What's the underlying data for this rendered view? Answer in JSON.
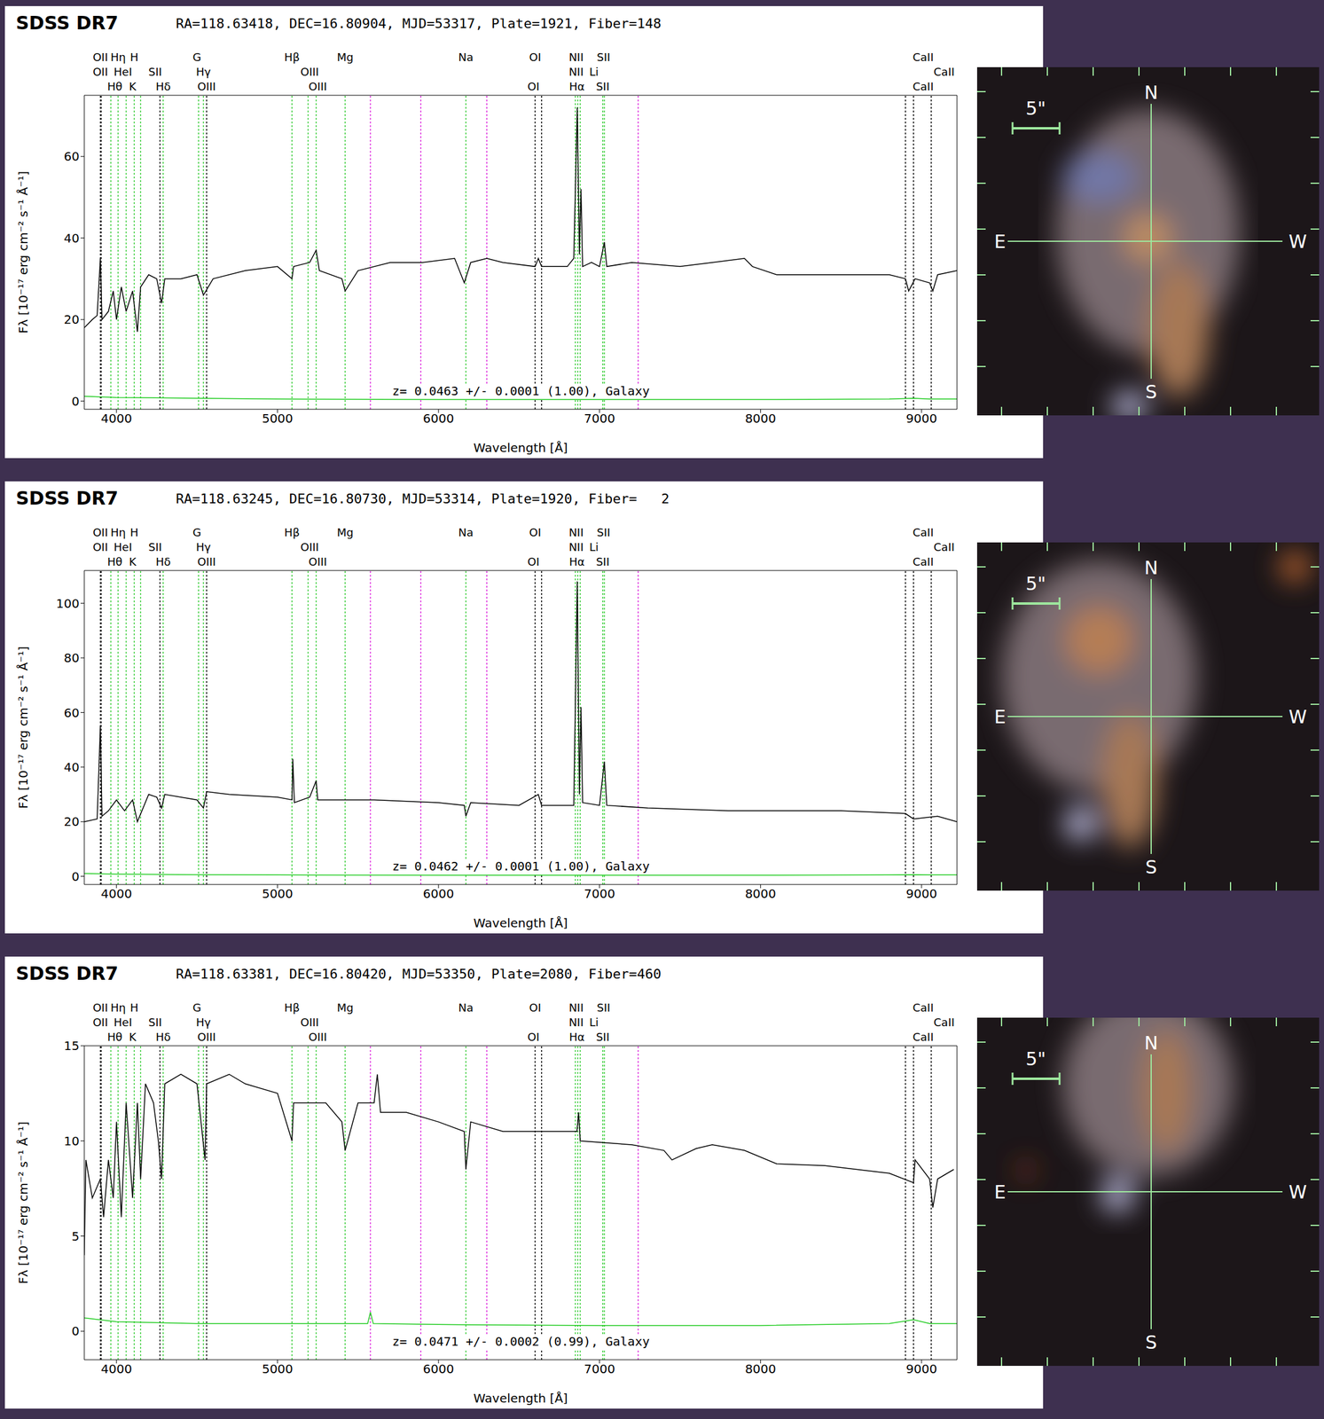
{
  "chart_data": [
    {
      "type": "line",
      "title": "SDSS DR7",
      "subtitle": "RA=118.63418, DEC=16.80904, MJD=53317, Plate=1921, Fiber=148",
      "x_label": "Wavelength [Å]",
      "y_label": "Fλ [10⁻¹⁷ erg cm⁻² s⁻¹ Å⁻¹]",
      "annotation": "z= 0.0463 +/- 0.0001 (1.00), Galaxy",
      "color": "#000000",
      "xlim": [
        3800,
        9220
      ],
      "xticks": [
        4000,
        5000,
        6000,
        7000,
        8000,
        9000
      ],
      "ylim": [
        -2,
        75
      ],
      "yticks": [
        0,
        20,
        40,
        60
      ],
      "x": [
        3800,
        3850,
        3880,
        3900,
        3910,
        3950,
        3980,
        4000,
        4030,
        4060,
        4100,
        4130,
        4150,
        4200,
        4250,
        4280,
        4300,
        4400,
        4500,
        4540,
        4600,
        4800,
        5000,
        5090,
        5100,
        5200,
        5240,
        5260,
        5400,
        5420,
        5500,
        5700,
        5900,
        6100,
        6160,
        6200,
        6300,
        6400,
        6600,
        6620,
        6640,
        6800,
        6840,
        6862,
        6875,
        6885,
        6895,
        6950,
        7000,
        7030,
        7045,
        7200,
        7500,
        7700,
        7900,
        7950,
        8100,
        8500,
        8800,
        8900,
        8920,
        8960,
        9050,
        9070,
        9100,
        9220
      ],
      "values": [
        18,
        20,
        21,
        35,
        20,
        22,
        27,
        20,
        28,
        22,
        27,
        17,
        28,
        31,
        30,
        24,
        30,
        30,
        31,
        26,
        30,
        32,
        33,
        30,
        33,
        34,
        37,
        32,
        30,
        27,
        32,
        34,
        34,
        35,
        29,
        34,
        35,
        34,
        33,
        35,
        33,
        33,
        35,
        72,
        36,
        52,
        33,
        34,
        33,
        39,
        33,
        34,
        33,
        34,
        35,
        33,
        31,
        31,
        31,
        30,
        27,
        30,
        29,
        27,
        31,
        32
      ],
      "error": {
        "x": [
          3800,
          4000,
          4500,
          5000,
          6000,
          7000,
          8000,
          8800,
          8950,
          9050,
          9220
        ],
        "values": [
          1.2,
          0.9,
          0.7,
          0.5,
          0.4,
          0.4,
          0.4,
          0.5,
          0.7,
          0.5,
          0.5
        ]
      }
    },
    {
      "type": "line",
      "title": "SDSS DR7",
      "subtitle": "RA=118.63245, DEC=16.80730, MJD=53314, Plate=1920, Fiber=   2",
      "x_label": "Wavelength [Å]",
      "y_label": "Fλ [10⁻¹⁷ erg cm⁻² s⁻¹ Å⁻¹]",
      "annotation": "z= 0.0462 +/- 0.0001 (1.00), Galaxy",
      "color": "#000000",
      "xlim": [
        3800,
        9220
      ],
      "xticks": [
        4000,
        5000,
        6000,
        7000,
        8000,
        9000
      ],
      "ylim": [
        -3,
        112
      ],
      "yticks": [
        0,
        20,
        40,
        60,
        80,
        100
      ],
      "x": [
        3800,
        3880,
        3900,
        3910,
        3950,
        4000,
        4050,
        4100,
        4130,
        4200,
        4250,
        4280,
        4300,
        4500,
        4540,
        4560,
        4700,
        5000,
        5090,
        5095,
        5105,
        5200,
        5240,
        5250,
        5400,
        5600,
        6000,
        6160,
        6170,
        6200,
        6500,
        6620,
        6640,
        6840,
        6862,
        6875,
        6885,
        6895,
        7000,
        7030,
        7045,
        7300,
        7800,
        8500,
        8900,
        8950,
        9100,
        9220
      ],
      "values": [
        20,
        21,
        55,
        22,
        24,
        28,
        24,
        28,
        20,
        30,
        29,
        25,
        30,
        28,
        25,
        31,
        30,
        29,
        28,
        43,
        27,
        29,
        35,
        28,
        28,
        28,
        27,
        26,
        22,
        27,
        26,
        30,
        26,
        26,
        108,
        30,
        62,
        27,
        26,
        42,
        26,
        25,
        24,
        24,
        23,
        21,
        22,
        20
      ],
      "error": {
        "x": [
          3800,
          4000,
          4500,
          5000,
          6000,
          7000,
          8000,
          8800,
          8950,
          9050,
          9220
        ],
        "values": [
          1.0,
          0.8,
          0.6,
          0.5,
          0.4,
          0.4,
          0.4,
          0.5,
          0.6,
          0.5,
          0.5
        ]
      }
    },
    {
      "type": "line",
      "title": "SDSS DR7",
      "subtitle": "RA=118.63381, DEC=16.80420, MJD=53350, Plate=2080, Fiber=460",
      "x_label": "Wavelength [Å]",
      "y_label": "Fλ [10⁻¹⁷ erg cm⁻² s⁻¹ Å⁻¹]",
      "annotation": "z= 0.0471 +/- 0.0002 (0.99), Galaxy",
      "color": "#000000",
      "xlim": [
        3800,
        9220
      ],
      "xticks": [
        4000,
        5000,
        6000,
        7000,
        8000,
        9000
      ],
      "ylim": [
        -1.5,
        15
      ],
      "yticks": [
        0,
        5,
        10,
        15
      ],
      "x": [
        3800,
        3810,
        3850,
        3900,
        3920,
        3950,
        3980,
        4000,
        4030,
        4060,
        4100,
        4130,
        4150,
        4180,
        4230,
        4260,
        4280,
        4300,
        4400,
        4500,
        4550,
        4560,
        4700,
        4800,
        5000,
        5090,
        5100,
        5300,
        5400,
        5420,
        5500,
        5600,
        5620,
        5640,
        5800,
        6000,
        6160,
        6170,
        6200,
        6400,
        6600,
        6700,
        6860,
        6870,
        6880,
        7200,
        7400,
        7450,
        7600,
        7700,
        7900,
        8100,
        8400,
        8800,
        8950,
        8960,
        9050,
        9070,
        9100,
        9200
      ],
      "values": [
        4,
        9,
        7,
        8,
        6,
        9,
        7,
        11,
        6,
        12,
        7,
        12,
        8,
        13,
        12,
        10,
        8,
        13,
        13.5,
        13,
        9,
        13,
        13.5,
        13,
        12.5,
        10,
        12,
        12,
        11,
        9.5,
        12,
        12,
        13.5,
        11.5,
        11.5,
        11,
        10.5,
        8.5,
        11,
        10.5,
        10.5,
        10.5,
        10.5,
        11.5,
        10,
        9.8,
        9.5,
        9,
        9.6,
        9.8,
        9.5,
        8.8,
        8.7,
        8.3,
        7.8,
        9,
        8,
        6.5,
        8,
        8.5
      ],
      "error": {
        "x": [
          3800,
          4000,
          4500,
          5000,
          5560,
          5577,
          5595,
          6000,
          7000,
          8000,
          8800,
          8950,
          9050,
          9220
        ],
        "values": [
          0.7,
          0.5,
          0.4,
          0.4,
          0.4,
          1.0,
          0.4,
          0.35,
          0.3,
          0.3,
          0.4,
          0.6,
          0.4,
          0.4
        ]
      }
    }
  ],
  "spectral_lines": {
    "markers": [
      {
        "x": 3900,
        "color": "#000000"
      },
      {
        "x": 3905,
        "color": "#000000"
      },
      {
        "x": 3965,
        "color": "#33cc33"
      },
      {
        "x": 4010,
        "color": "#33cc33"
      },
      {
        "x": 4060,
        "color": "#33cc33"
      },
      {
        "x": 4110,
        "color": "#33cc33"
      },
      {
        "x": 4150,
        "color": "#33cc33"
      },
      {
        "x": 4270,
        "color": "#000000"
      },
      {
        "x": 4290,
        "color": "#33cc33"
      },
      {
        "x": 4510,
        "color": "#33cc33"
      },
      {
        "x": 4540,
        "color": "#33cc33"
      },
      {
        "x": 4560,
        "color": "#000000"
      },
      {
        "x": 5090,
        "color": "#33cc33"
      },
      {
        "x": 5190,
        "color": "#33cc33"
      },
      {
        "x": 5240,
        "color": "#33cc33"
      },
      {
        "x": 5420,
        "color": "#33cc33"
      },
      {
        "x": 5577,
        "color": "#dd22dd"
      },
      {
        "x": 5890,
        "color": "#dd22dd"
      },
      {
        "x": 6170,
        "color": "#33cc33"
      },
      {
        "x": 6300,
        "color": "#dd22dd"
      },
      {
        "x": 6600,
        "color": "#000000"
      },
      {
        "x": 6640,
        "color": "#000000"
      },
      {
        "x": 6850,
        "color": "#33cc33"
      },
      {
        "x": 6865,
        "color": "#33cc33"
      },
      {
        "x": 6880,
        "color": "#33cc33"
      },
      {
        "x": 7020,
        "color": "#33cc33"
      },
      {
        "x": 7030,
        "color": "#33cc33"
      },
      {
        "x": 7240,
        "color": "#dd22dd"
      },
      {
        "x": 8900,
        "color": "#000000"
      },
      {
        "x": 8950,
        "color": "#000000"
      },
      {
        "x": 9060,
        "color": "#000000"
      }
    ],
    "labels": [
      [
        {
          "x": 3900,
          "label": "OII"
        },
        {
          "x": 4010,
          "label": "Hη"
        },
        {
          "x": 4110,
          "label": "H"
        },
        {
          "x": 4500,
          "label": "G"
        },
        {
          "x": 5090,
          "label": "Hβ"
        },
        {
          "x": 5420,
          "label": "Mg"
        },
        {
          "x": 6170,
          "label": "Na"
        },
        {
          "x": 6600,
          "label": "OI"
        },
        {
          "x": 6855,
          "label": "NII"
        },
        {
          "x": 7025,
          "label": "SII"
        },
        {
          "x": 9010,
          "label": "CaII"
        }
      ],
      [
        {
          "x": 3900,
          "label": "OII"
        },
        {
          "x": 4040,
          "label": "HeI"
        },
        {
          "x": 4240,
          "label": "SII"
        },
        {
          "x": 4540,
          "label": "Hγ"
        },
        {
          "x": 5200,
          "label": "OIII"
        },
        {
          "x": 6855,
          "label": "NII"
        },
        {
          "x": 6965,
          "label": "Li"
        },
        {
          "x": 9140,
          "label": "CaII"
        }
      ],
      [
        {
          "x": 3990,
          "label": "Hθ"
        },
        {
          "x": 4100,
          "label": "K"
        },
        {
          "x": 4290,
          "label": "Hδ"
        },
        {
          "x": 4560,
          "label": "OIII"
        },
        {
          "x": 5250,
          "label": "OIII"
        },
        {
          "x": 6590,
          "label": "OI"
        },
        {
          "x": 6860,
          "label": "Hα"
        },
        {
          "x": 7020,
          "label": "SII"
        },
        {
          "x": 9010,
          "label": "CaII"
        }
      ]
    ]
  },
  "images": [
    {
      "scale_label": "5\"",
      "compass": {
        "N": "N",
        "E": "E",
        "W": "W",
        "S": "S"
      }
    },
    {
      "scale_label": "5\"",
      "compass": {
        "N": "N",
        "E": "E",
        "W": "W",
        "S": "S"
      }
    },
    {
      "scale_label": "5\"",
      "compass": {
        "N": "N",
        "E": "E",
        "W": "W",
        "S": "S"
      }
    }
  ]
}
